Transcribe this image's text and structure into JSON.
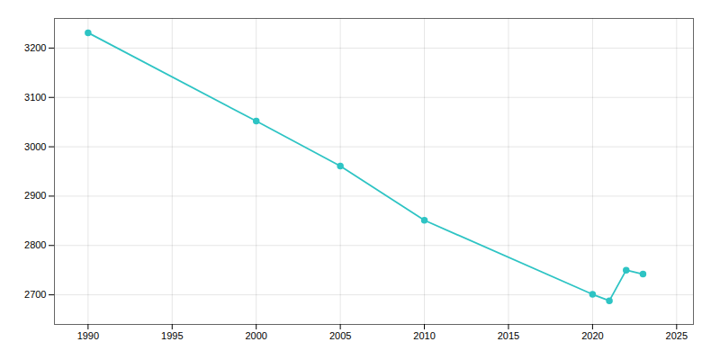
{
  "chart_data": {
    "type": "line",
    "x": [
      1990,
      2000,
      2005,
      2010,
      2020,
      2021,
      2022,
      2023
    ],
    "values": [
      3231,
      3052,
      2961,
      2851,
      2701,
      2688,
      2750,
      2742
    ],
    "color": "#2EC4C4",
    "marker": "circle",
    "xlim": [
      1988,
      2026
    ],
    "ylim": [
      2640,
      3260
    ],
    "xticks": [
      1990,
      1995,
      2000,
      2005,
      2010,
      2015,
      2020,
      2025
    ],
    "yticks": [
      2700,
      2800,
      2900,
      3000,
      3100,
      3200
    ],
    "grid": true
  }
}
